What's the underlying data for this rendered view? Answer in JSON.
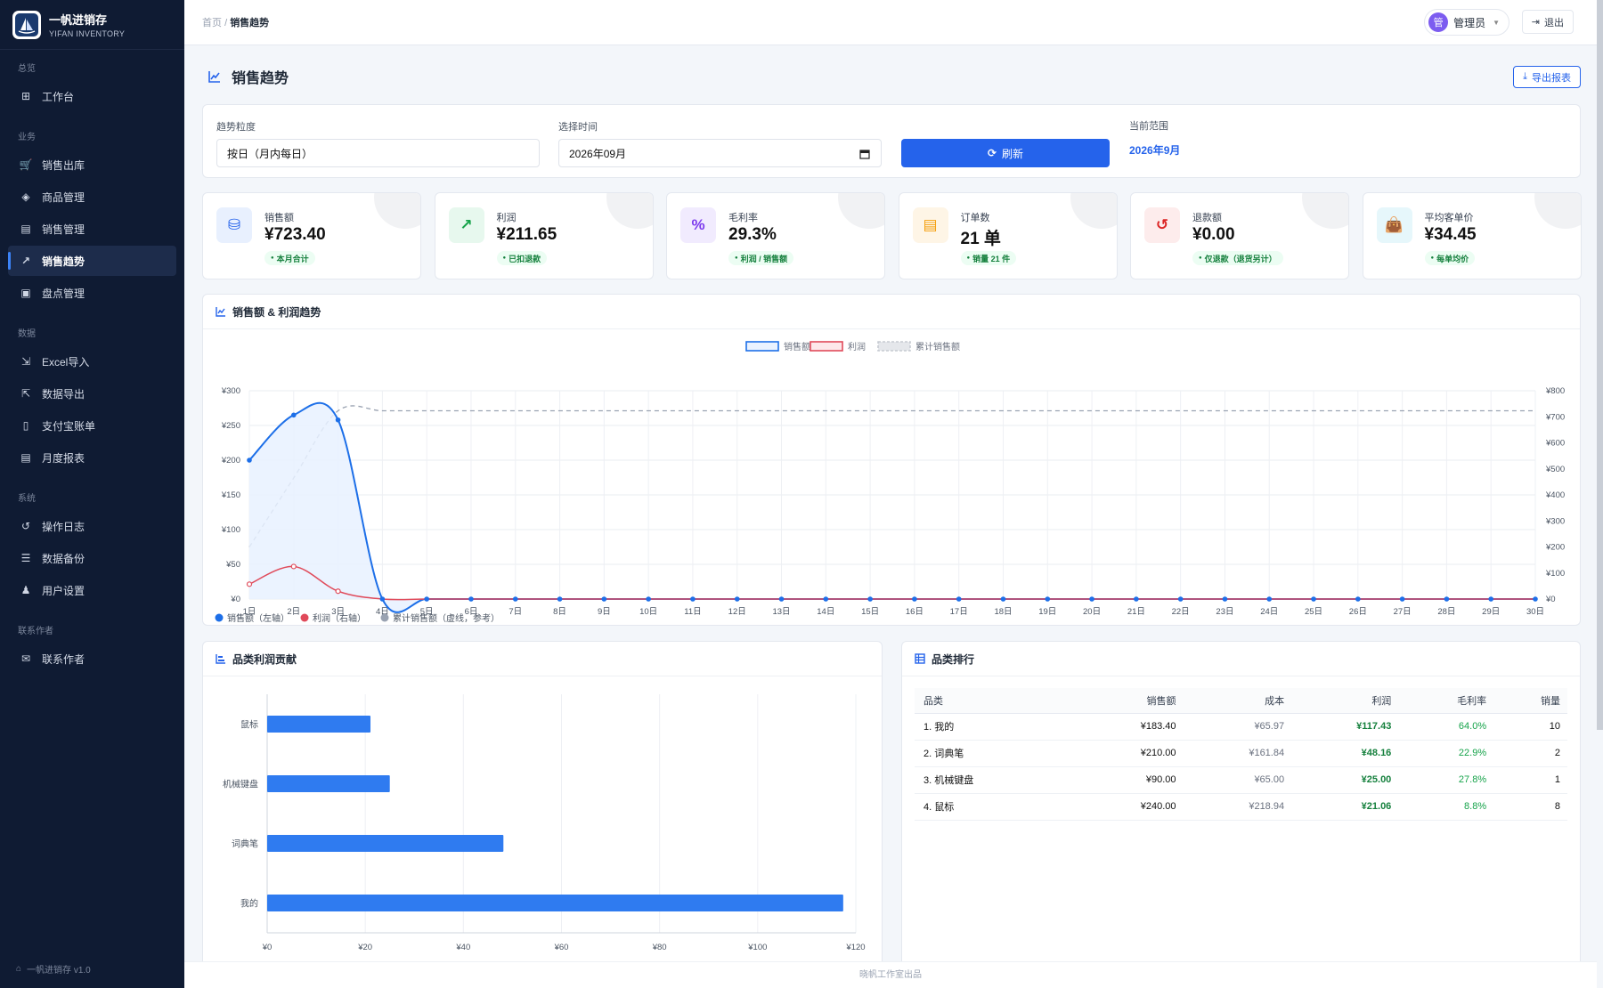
{
  "brand": {
    "name": "一帆进销存",
    "sub": "YIFAN INVENTORY",
    "footer": "一帆进销存 v1.0"
  },
  "sidebar": {
    "groups": [
      {
        "label": "总览",
        "items": [
          {
            "label": "工作台",
            "icon": "dashboard-icon"
          }
        ]
      },
      {
        "label": "业务",
        "items": [
          {
            "label": "销售出库",
            "icon": "cart-icon"
          },
          {
            "label": "商品管理",
            "icon": "box-icon"
          },
          {
            "label": "销售管理",
            "icon": "chart-bar-icon"
          },
          {
            "label": "销售趋势",
            "icon": "chart-line-icon",
            "active": true
          },
          {
            "label": "盘点管理",
            "icon": "clipboard-icon"
          }
        ]
      },
      {
        "label": "数据",
        "items": [
          {
            "label": "Excel导入",
            "icon": "import-icon"
          },
          {
            "label": "数据导出",
            "icon": "file-export-icon"
          },
          {
            "label": "支付宝账单",
            "icon": "file-icon"
          },
          {
            "label": "月度报表",
            "icon": "file-text-icon"
          }
        ]
      },
      {
        "label": "系统",
        "items": [
          {
            "label": "操作日志",
            "icon": "history-icon"
          },
          {
            "label": "数据备份",
            "icon": "database-icon"
          },
          {
            "label": "用户设置",
            "icon": "user-gear-icon"
          }
        ]
      },
      {
        "label": "联系作者",
        "items": [
          {
            "label": "联系作者",
            "icon": "contact-icon"
          }
        ]
      }
    ]
  },
  "topbar": {
    "breadcrumb_home": "首页",
    "breadcrumb_sep": "/",
    "breadcrumb_current": "销售趋势",
    "user_avatar": "管",
    "user_name": "管理员",
    "logout": "退出"
  },
  "page": {
    "title": "销售趋势",
    "export": "导出报表"
  },
  "filters": {
    "granularity_label": "趋势粒度",
    "granularity_value": "按日（月内每日）",
    "time_label": "选择时间",
    "time_value": "2026年09月",
    "refresh": "刷新",
    "range_label": "当前范围",
    "range_value": "2026年9月"
  },
  "stats": [
    {
      "label": "销售额",
      "value": "¥723.40",
      "badge": "本月合计",
      "color": "#2563eb",
      "bg": "#e8f0fe",
      "icon": "coins-icon"
    },
    {
      "label": "利润",
      "value": "¥211.65",
      "badge": "已扣退款",
      "color": "#16a34a",
      "bg": "#e7f8ee",
      "icon": "trend-icon"
    },
    {
      "label": "毛利率",
      "value": "29.3%",
      "badge": "利润 / 销售额",
      "color": "#7c3aed",
      "bg": "#f1ebfe",
      "icon": "percent-icon"
    },
    {
      "label": "订单数",
      "value": "21 单",
      "badge": "销量 21 件",
      "color": "#f59e0b",
      "bg": "#fef5e6",
      "icon": "receipt-icon"
    },
    {
      "label": "退款额",
      "value": "¥0.00",
      "badge": "仅退款（退货另计）",
      "color": "#dc2626",
      "bg": "#fdecec",
      "icon": "refund-icon"
    },
    {
      "label": "平均客单价",
      "value": "¥34.45",
      "badge": "每单均价",
      "color": "#0891b2",
      "bg": "#e6f7fb",
      "icon": "bag-icon"
    }
  ],
  "trend": {
    "title": "销售额 & 利润趋势",
    "legend_sales": "销售额",
    "legend_profit": "利润",
    "legend_cum": "累计销售额",
    "foot_sales": "销售额（左轴）",
    "foot_profit": "利润（右轴）",
    "foot_cum": "累计销售额（虚线，参考）"
  },
  "category_chart_title": "品类利润贡献",
  "ranking": {
    "title": "品类排行",
    "headers": [
      "品类",
      "销售额",
      "成本",
      "利润",
      "毛利率",
      "销量"
    ],
    "rows": [
      [
        "1. 我的",
        "¥183.40",
        "¥65.97",
        "¥117.43",
        "64.0%",
        "10"
      ],
      [
        "2. 词典笔",
        "¥210.00",
        "¥161.84",
        "¥48.16",
        "22.9%",
        "2"
      ],
      [
        "3. 机械键盘",
        "¥90.00",
        "¥65.00",
        "¥25.00",
        "27.8%",
        "1"
      ],
      [
        "4. 鼠标",
        "¥240.00",
        "¥218.94",
        "¥21.06",
        "8.8%",
        "8"
      ]
    ]
  },
  "footer": "晓帆工作室出品",
  "chart_data": [
    {
      "type": "line",
      "title": "销售额 & 利润趋势",
      "x": [
        "1日",
        "2日",
        "3日",
        "4日",
        "5日",
        "6日",
        "7日",
        "8日",
        "9日",
        "10日",
        "11日",
        "12日",
        "13日",
        "14日",
        "15日",
        "16日",
        "17日",
        "18日",
        "19日",
        "20日",
        "21日",
        "22日",
        "23日",
        "24日",
        "25日",
        "26日",
        "27日",
        "28日",
        "29日",
        "30日"
      ],
      "y_left_ticks": [
        "¥0",
        "¥50",
        "¥100",
        "¥150",
        "¥200",
        "¥250",
        "¥300"
      ],
      "y_right_ticks": [
        "¥0",
        "¥100",
        "¥200",
        "¥300",
        "¥400",
        "¥500",
        "¥600",
        "¥700",
        "¥800"
      ],
      "ylim_left": [
        0,
        300
      ],
      "ylim_right": [
        0,
        800
      ],
      "series": [
        {
          "name": "销售额",
          "axis": "left",
          "color": "#1d6fe8",
          "values": [
            200,
            265,
            258,
            0,
            0,
            0,
            0,
            0,
            0,
            0,
            0,
            0,
            0,
            0,
            0,
            0,
            0,
            0,
            0,
            0,
            0,
            0,
            0,
            0,
            0,
            0,
            0,
            0,
            0,
            0
          ]
        },
        {
          "name": "利润",
          "axis": "right",
          "color": "#e04a5a",
          "values": [
            57,
            125,
            30,
            0,
            0,
            0,
            0,
            0,
            0,
            0,
            0,
            0,
            0,
            0,
            0,
            0,
            0,
            0,
            0,
            0,
            0,
            0,
            0,
            0,
            0,
            0,
            0,
            0,
            0,
            0
          ]
        },
        {
          "name": "累计销售额",
          "axis": "right",
          "color": "#9aa3b2",
          "dashed": true,
          "values": [
            200,
            465,
            723,
            723,
            723,
            723,
            723,
            723,
            723,
            723,
            723,
            723,
            723,
            723,
            723,
            723,
            723,
            723,
            723,
            723,
            723,
            723,
            723,
            723,
            723,
            723,
            723,
            723,
            723,
            723
          ]
        }
      ],
      "grid": true,
      "legend": "top"
    },
    {
      "type": "bar",
      "orientation": "horizontal",
      "title": "品类利润贡献",
      "categories": [
        "鼠标",
        "机械键盘",
        "词典笔",
        "我的"
      ],
      "values": [
        21.06,
        25.0,
        48.16,
        117.43
      ],
      "x_ticks": [
        "¥0",
        "¥20",
        "¥40",
        "¥60",
        "¥80",
        "¥100",
        "¥120"
      ],
      "xlim": [
        0,
        120
      ],
      "color": "#2f7bf0",
      "grid": true
    }
  ]
}
